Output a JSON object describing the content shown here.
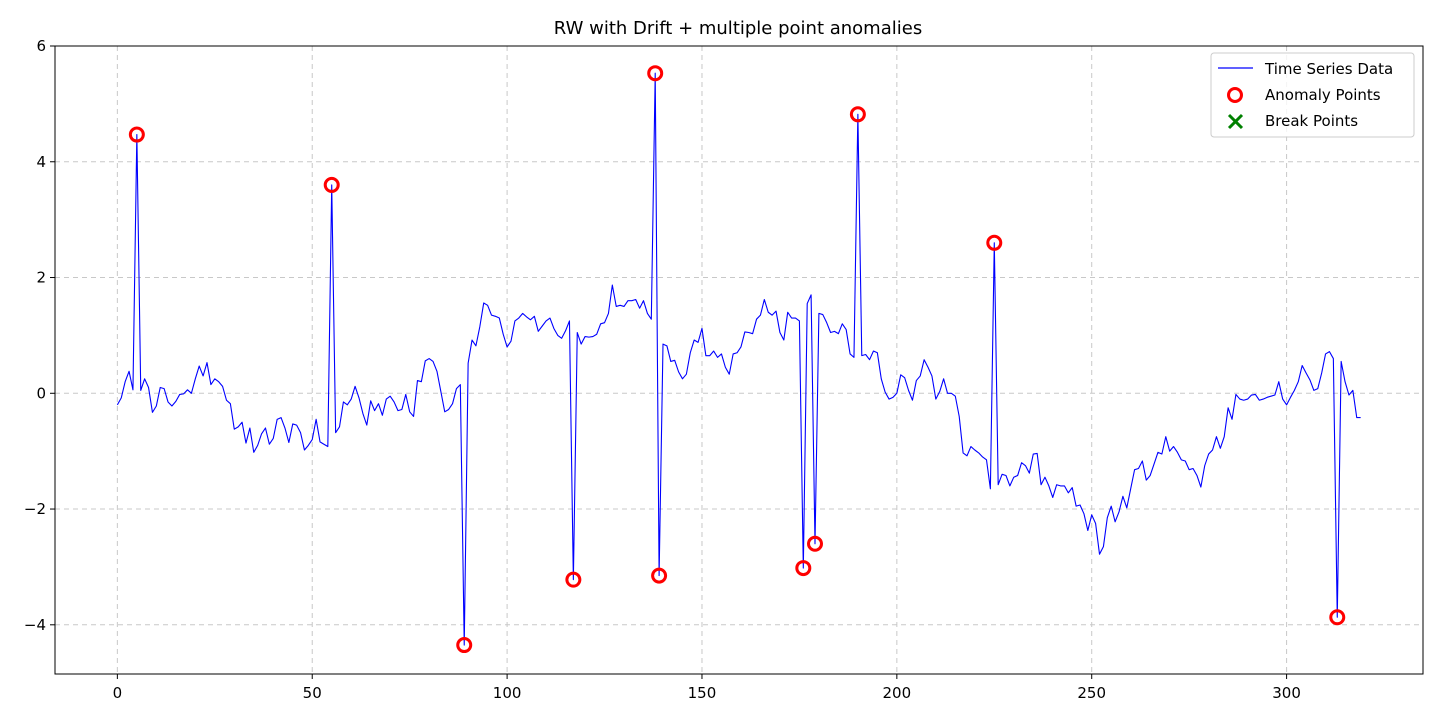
{
  "chart_data": {
    "type": "line",
    "title": "RW with Drift + multiple point anomalies",
    "xlabel": "",
    "ylabel": "",
    "xlim": [
      -16,
      335
    ],
    "ylim": [
      -4.85,
      6.0
    ],
    "xticks": [
      0,
      50,
      100,
      150,
      200,
      250,
      300
    ],
    "yticks": [
      -4,
      -2,
      0,
      2,
      4,
      6
    ],
    "ytick_labels": [
      "−4",
      "−2",
      "0",
      "2",
      "4",
      "6"
    ],
    "grid": true,
    "legend_position": "top-right",
    "series": [
      {
        "name": "Time Series Data",
        "kind": "line",
        "color": "#0000ff",
        "x_start": 0,
        "x_step": 1,
        "values": [
          -0.2,
          -0.08,
          0.2,
          0.38,
          0.06,
          4.47,
          0.05,
          0.25,
          0.1,
          -0.33,
          -0.22,
          0.1,
          0.08,
          -0.15,
          -0.22,
          -0.14,
          -0.02,
          -0.01,
          0.06,
          0.0,
          0.25,
          0.47,
          0.3,
          0.53,
          0.15,
          0.25,
          0.2,
          0.12,
          -0.12,
          -0.18,
          -0.62,
          -0.58,
          -0.5,
          -0.86,
          -0.6,
          -1.02,
          -0.9,
          -0.7,
          -0.6,
          -0.88,
          -0.78,
          -0.45,
          -0.42,
          -0.6,
          -0.85,
          -0.53,
          -0.55,
          -0.68,
          -0.98,
          -0.9,
          -0.8,
          -0.45,
          -0.84,
          -0.88,
          -0.92,
          3.6,
          -0.68,
          -0.58,
          -0.15,
          -0.2,
          -0.1,
          0.12,
          -0.08,
          -0.35,
          -0.55,
          -0.13,
          -0.3,
          -0.18,
          -0.38,
          -0.1,
          -0.05,
          -0.15,
          -0.3,
          -0.28,
          -0.02,
          -0.32,
          -0.4,
          0.22,
          0.2,
          0.56,
          0.6,
          0.55,
          0.38,
          0.03,
          -0.32,
          -0.28,
          -0.18,
          0.08,
          0.15,
          -4.35,
          0.52,
          0.92,
          0.82,
          1.15,
          1.56,
          1.52,
          1.35,
          1.33,
          1.3,
          1.02,
          0.8,
          0.9,
          1.25,
          1.3,
          1.38,
          1.32,
          1.27,
          1.33,
          1.07,
          1.16,
          1.25,
          1.3,
          1.12,
          1.0,
          0.95,
          1.08,
          1.25,
          -3.22,
          1.05,
          0.85,
          0.98,
          0.97,
          0.98,
          1.02,
          1.2,
          1.22,
          1.38,
          1.87,
          1.5,
          1.52,
          1.5,
          1.6,
          1.6,
          1.62,
          1.47,
          1.6,
          1.38,
          1.28,
          5.53,
          -3.15,
          0.85,
          0.82,
          0.55,
          0.57,
          0.37,
          0.25,
          0.33,
          0.7,
          0.92,
          0.88,
          1.12,
          0.65,
          0.65,
          0.73,
          0.62,
          0.68,
          0.45,
          0.33,
          0.68,
          0.7,
          0.8,
          1.06,
          1.05,
          1.03,
          1.28,
          1.35,
          1.62,
          1.4,
          1.35,
          1.42,
          1.05,
          0.92,
          1.4,
          1.3,
          1.3,
          1.25,
          -3.02,
          1.55,
          1.7,
          -2.6,
          1.38,
          1.36,
          1.22,
          1.05,
          1.07,
          1.03,
          1.2,
          1.1,
          0.68,
          0.62,
          4.82,
          0.65,
          0.67,
          0.58,
          0.73,
          0.7,
          0.25,
          0.02,
          -0.1,
          -0.07,
          0.0,
          0.32,
          0.27,
          0.05,
          -0.12,
          0.22,
          0.3,
          0.58,
          0.45,
          0.3,
          -0.1,
          0.03,
          0.25,
          0.0,
          0.0,
          -0.05,
          -0.4,
          -1.03,
          -1.08,
          -0.92,
          -0.98,
          -1.03,
          -1.1,
          -1.15,
          -1.65,
          2.6,
          -1.58,
          -1.4,
          -1.42,
          -1.6,
          -1.45,
          -1.42,
          -1.2,
          -1.25,
          -1.38,
          -1.05,
          -1.04,
          -1.58,
          -1.45,
          -1.6,
          -1.8,
          -1.58,
          -1.6,
          -1.6,
          -1.72,
          -1.63,
          -1.95,
          -1.93,
          -2.08,
          -2.37,
          -2.1,
          -2.25,
          -2.78,
          -2.65,
          -2.15,
          -1.95,
          -2.22,
          -2.05,
          -1.78,
          -1.98,
          -1.65,
          -1.32,
          -1.3,
          -1.17,
          -1.5,
          -1.42,
          -1.22,
          -1.02,
          -1.05,
          -0.75,
          -1.0,
          -0.92,
          -1.02,
          -1.15,
          -1.17,
          -1.32,
          -1.3,
          -1.42,
          -1.62,
          -1.25,
          -1.05,
          -0.98,
          -0.75,
          -0.95,
          -0.75,
          -0.25,
          -0.45,
          -0.02,
          -0.1,
          -0.12,
          -0.1,
          -0.03,
          -0.02,
          -0.12,
          -0.1,
          -0.07,
          -0.05,
          -0.03,
          0.2,
          -0.1,
          -0.2,
          -0.07,
          0.05,
          0.2,
          0.48,
          0.35,
          0.23,
          0.05,
          0.08,
          0.35,
          0.68,
          0.72,
          0.6,
          -3.87,
          0.55,
          0.2,
          -0.03,
          0.05,
          -0.42,
          -0.42
        ]
      },
      {
        "name": "Anomaly Points",
        "kind": "marker-circle",
        "color": "#ff0000",
        "points": [
          {
            "x": 5,
            "y": 4.47
          },
          {
            "x": 55,
            "y": 3.6
          },
          {
            "x": 89,
            "y": -4.35
          },
          {
            "x": 117,
            "y": -3.22
          },
          {
            "x": 138,
            "y": 5.53
          },
          {
            "x": 139,
            "y": -3.15
          },
          {
            "x": 176,
            "y": -3.02
          },
          {
            "x": 179,
            "y": -2.6
          },
          {
            "x": 190,
            "y": 4.82
          },
          {
            "x": 225,
            "y": 2.6
          },
          {
            "x": 313,
            "y": -3.87
          }
        ]
      },
      {
        "name": "Break Points",
        "kind": "marker-x",
        "color": "#008000",
        "points": []
      }
    ]
  }
}
